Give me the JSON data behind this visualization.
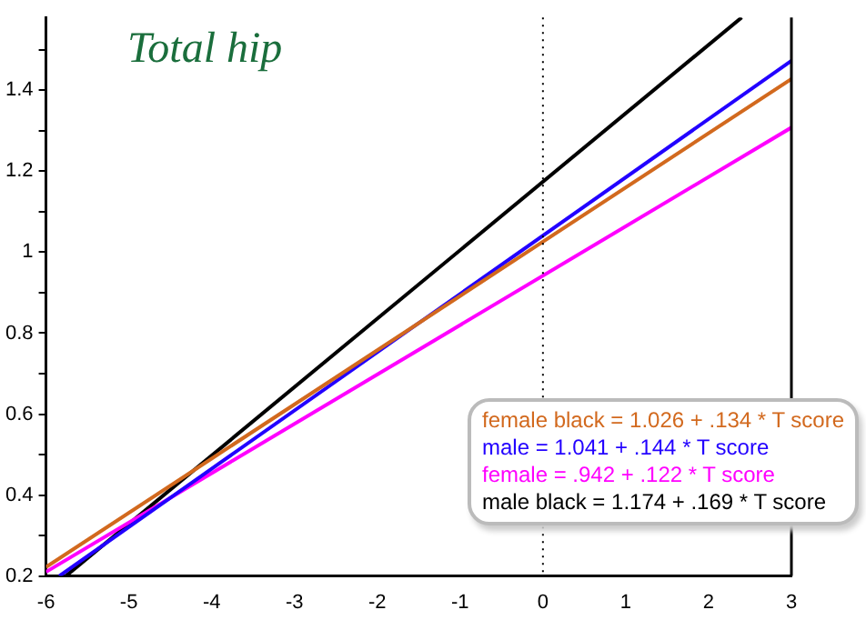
{
  "chart_data": {
    "type": "line",
    "title": "Total hip",
    "xlim": [
      -6,
      3
    ],
    "xticks": [
      -6,
      -5,
      -4,
      -3,
      -2,
      -1,
      0,
      1,
      2,
      3
    ],
    "ylim": [
      0.2,
      1.58
    ],
    "yticks": [
      0.2,
      {
        "value": 0.3,
        "label": null
      },
      0.4,
      {
        "value": 0.5,
        "label": null
      },
      0.6,
      {
        "value": 0.7,
        "label": null
      },
      0.8,
      {
        "value": 0.9,
        "label": null
      },
      1,
      {
        "value": 1.1,
        "label": null
      },
      1.2,
      {
        "value": 1.3,
        "label": null
      },
      1.4,
      {
        "value": 1.5,
        "label": null
      }
    ],
    "grid": false,
    "legend": "bottom right",
    "marker": "none",
    "line_style": "solid",
    "ref_lines": [
      {
        "axis": "x",
        "value": 0,
        "label": null,
        "color": "#000000",
        "line_style": "dotted"
      }
    ],
    "series": [
      {
        "name": "female black = 1.026 + .134 * T score",
        "color": "#d2691e",
        "x": [
          -6,
          3
        ],
        "values": [
          0.222,
          1.428
        ]
      },
      {
        "name": "male = 1.041 + .144 * T score",
        "color": "#2200ff",
        "x": [
          -5.84,
          3
        ],
        "values": [
          0.2,
          1.473
        ]
      },
      {
        "name": "female = .942 + .122 * T score",
        "color": "#ff00ff",
        "x": [
          -6,
          3
        ],
        "values": [
          0.21,
          1.308
        ]
      },
      {
        "name": "male black = 1.174 + .169 * T score",
        "color": "#000000",
        "x": [
          -5.76,
          2.4
        ],
        "values": [
          0.2,
          1.58
        ]
      }
    ]
  }
}
